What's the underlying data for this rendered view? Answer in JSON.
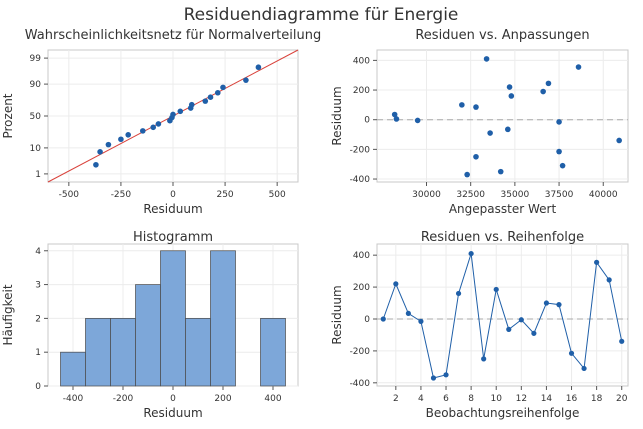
{
  "title": "Residuendiagramme für Energie",
  "chart_data": [
    {
      "type": "scatter",
      "title": "Wahrscheinlichkeitsnetz für Normalverteilung",
      "xlabel": "Residuum",
      "ylabel": "Prozent",
      "xlim": [
        -600,
        600
      ],
      "xticks": [
        -500,
        -250,
        0,
        250,
        500
      ],
      "yticks": [
        1,
        10,
        50,
        90,
        99
      ],
      "y_scale": "normal-probability",
      "fit_line": {
        "x": [
          -600,
          600
        ],
        "y": [
          0.4,
          99.6
        ],
        "color": "#d9423b"
      },
      "points": [
        {
          "x": -370,
          "y": 2.5
        },
        {
          "x": -350,
          "y": 7.5
        },
        {
          "x": -310,
          "y": 12.5
        },
        {
          "x": -250,
          "y": 17.5
        },
        {
          "x": -215,
          "y": 22.5
        },
        {
          "x": -145,
          "y": 27.5
        },
        {
          "x": -95,
          "y": 32.5
        },
        {
          "x": -70,
          "y": 37.5
        },
        {
          "x": -15,
          "y": 42.5
        },
        {
          "x": -5,
          "y": 47.5
        },
        {
          "x": 0,
          "y": 52.5
        },
        {
          "x": 35,
          "y": 57.5
        },
        {
          "x": 85,
          "y": 62.5
        },
        {
          "x": 90,
          "y": 67.5
        },
        {
          "x": 155,
          "y": 72.5
        },
        {
          "x": 180,
          "y": 77.5
        },
        {
          "x": 215,
          "y": 82.5
        },
        {
          "x": 240,
          "y": 87.5
        },
        {
          "x": 350,
          "y": 92.5
        },
        {
          "x": 410,
          "y": 97.5
        }
      ]
    },
    {
      "type": "scatter",
      "title": "Residuen vs. Anpassungen",
      "xlabel": "Angepasster Wert",
      "ylabel": "Residuum",
      "xlim": [
        27200,
        41400
      ],
      "ylim": [
        -420,
        470
      ],
      "xticks": [
        30000,
        32500,
        35000,
        37500,
        40000
      ],
      "xtick_labels": [
        "30000",
        "32500",
        "35000",
        "37500",
        "40000"
      ],
      "yticks": [
        -400,
        -200,
        0,
        200,
        400
      ],
      "reference_line": 0,
      "points": [
        {
          "x": 28200,
          "y": 35
        },
        {
          "x": 28300,
          "y": 5
        },
        {
          "x": 29500,
          "y": -5
        },
        {
          "x": 32000,
          "y": 100
        },
        {
          "x": 32800,
          "y": 85
        },
        {
          "x": 33400,
          "y": 410
        },
        {
          "x": 32300,
          "y": -370
        },
        {
          "x": 32800,
          "y": -250
        },
        {
          "x": 33600,
          "y": -90
        },
        {
          "x": 34200,
          "y": -350
        },
        {
          "x": 34600,
          "y": -65
        },
        {
          "x": 34700,
          "y": 220
        },
        {
          "x": 34800,
          "y": 160
        },
        {
          "x": 36600,
          "y": 190
        },
        {
          "x": 36900,
          "y": 245
        },
        {
          "x": 37500,
          "y": -15
        },
        {
          "x": 37500,
          "y": -215
        },
        {
          "x": 37700,
          "y": -310
        },
        {
          "x": 38600,
          "y": 355
        },
        {
          "x": 40900,
          "y": -140
        }
      ]
    },
    {
      "type": "bar",
      "title": "Histogramm",
      "xlabel": "Residuum",
      "ylabel": "Häufigkeit",
      "xlim": [
        -500,
        500
      ],
      "ylim": [
        0,
        4.2
      ],
      "xticks": [
        -400,
        -200,
        0,
        200,
        400
      ],
      "yticks": [
        0,
        1,
        2,
        3,
        4
      ],
      "bin_width": 100,
      "bin_centers": [
        -400,
        -300,
        -200,
        -100,
        0,
        100,
        200,
        300,
        400
      ],
      "values": [
        1,
        2,
        2,
        3,
        4,
        2,
        4,
        0,
        2
      ],
      "color": "#7da7d9"
    },
    {
      "type": "line",
      "title": "Residuen vs. Reihenfolge",
      "xlabel": "Beobachtungsreihenfolge",
      "ylabel": "Residuum",
      "xlim": [
        0.5,
        20.5
      ],
      "ylim": [
        -420,
        470
      ],
      "xticks": [
        2,
        4,
        6,
        8,
        10,
        12,
        14,
        16,
        18,
        20
      ],
      "yticks": [
        -400,
        -200,
        0,
        200,
        400
      ],
      "reference_line": 0,
      "x": [
        1,
        2,
        3,
        4,
        5,
        6,
        7,
        8,
        9,
        10,
        11,
        12,
        13,
        14,
        15,
        16,
        17,
        18,
        19,
        20
      ],
      "y": [
        0,
        220,
        35,
        -15,
        -370,
        -350,
        160,
        410,
        -250,
        185,
        -65,
        -5,
        -90,
        100,
        90,
        -215,
        -310,
        355,
        245,
        -140
      ]
    }
  ]
}
